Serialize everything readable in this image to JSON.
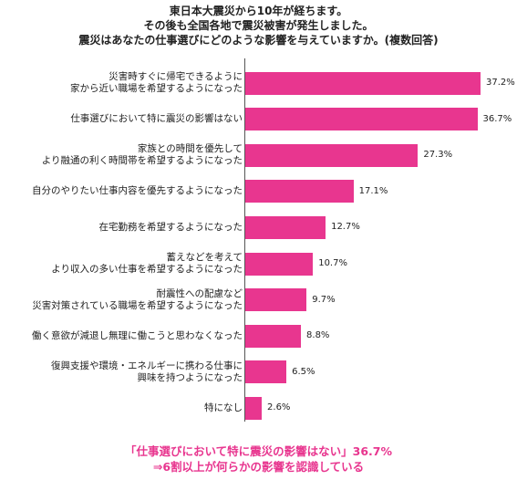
{
  "title_lines": [
    "東日本大震災から10年が経ちます。",
    "その後も全国各地で震災被害が発生しました。",
    "震災はあなたの仕事選びにどのような影響を与えていますか。(複数回答)"
  ],
  "note_lines": [
    "「仕事選びにおいて特に震災の影響はない」36.7%",
    "⇒6割以上が何らかの影響を認識している"
  ],
  "colors": {
    "bar": "#e8368f",
    "note": "#e8368f"
  },
  "chart_data": {
    "type": "bar",
    "orientation": "horizontal",
    "title": "震災はあなたの仕事選びにどのような影響を与えていますか。(複数回答)",
    "categories": [
      [
        "災害時すぐに帰宅できるように",
        "家から近い職場を希望するようになった"
      ],
      [
        "仕事選びにおいて特に震災の影響はない"
      ],
      [
        "家族との時間を優先して",
        "より融通の利く時間帯を希望するようになった"
      ],
      [
        "自分のやりたい仕事内容を優先するようになった"
      ],
      [
        "在宅勤務を希望するようになった"
      ],
      [
        "蓄えなどを考えて",
        "より収入の多い仕事を希望するようになった"
      ],
      [
        "耐震性への配慮など",
        "災害対策されている職場を希望するようになった"
      ],
      [
        "働く意欲が減退し無理に働こうと思わなくなった"
      ],
      [
        "復興支援や環境・エネルギーに携わる仕事に",
        "興味を持つようになった"
      ],
      [
        "特になし"
      ]
    ],
    "values": [
      37.2,
      36.7,
      27.3,
      17.1,
      12.7,
      10.7,
      9.7,
      8.8,
      6.5,
      2.6
    ],
    "value_labels": [
      "37.2%",
      "36.7%",
      "27.3%",
      "17.1%",
      "12.7%",
      "10.7%",
      "9.7%",
      "8.8%",
      "6.5%",
      "2.6%"
    ],
    "xlim": [
      0,
      37.2
    ],
    "grid": false,
    "legend": "none"
  }
}
